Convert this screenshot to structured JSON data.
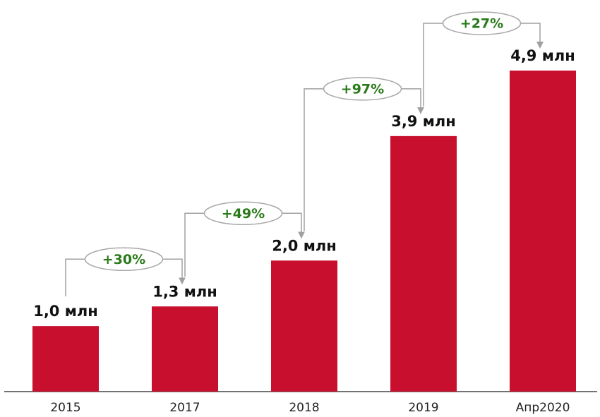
{
  "chart_data": {
    "type": "bar",
    "categories": [
      "2015",
      "2017",
      "2018",
      "2019",
      "Апр2020"
    ],
    "values": [
      1.0,
      1.3,
      2.0,
      3.9,
      4.9
    ],
    "value_labels": [
      "1,0 млн",
      "1,3 млн",
      "2,0 млн",
      "3,9 млн",
      "4,9 млн"
    ],
    "annotations": [
      "+30%",
      "+49%",
      "+97%",
      "+27%"
    ],
    "color": "#c8102e"
  }
}
